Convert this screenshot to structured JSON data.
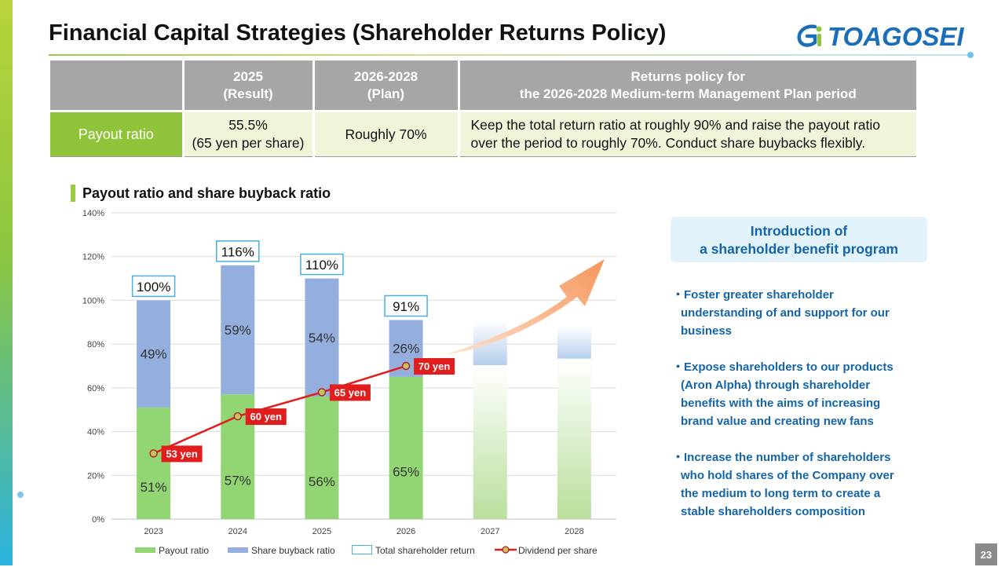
{
  "title": "Financial Capital Strategies (Shareholder Returns Policy)",
  "logo_text": "TOAGOSEI",
  "table": {
    "corner": "",
    "col1_line1": "2025",
    "col1_line2": "(Result)",
    "col2_line1": "2026-2028",
    "col2_line2": "(Plan)",
    "col3_line1": "Returns policy for",
    "col3_line2": "the 2026-2028 Medium-term Management Plan period",
    "row_label": "Payout ratio",
    "val1_line1": "55.5%",
    "val1_line2": "(65 yen per share)",
    "val2": "Roughly 70%",
    "policy_line1": "Keep the total return ratio at roughly 90% and raise the payout ratio",
    "policy_line2": "over the period to roughly 70%. Conduct share buybacks flexibly."
  },
  "chart_heading": "Payout ratio and share buyback ratio",
  "chart_data": {
    "type": "bar",
    "stacked": true,
    "categories": [
      "2023",
      "2024",
      "2025",
      "2026",
      "2027",
      "2028"
    ],
    "series": [
      {
        "name": "Payout ratio",
        "values": [
          51,
          57,
          56,
          65,
          70,
          73
        ],
        "labels": [
          "51%",
          "57%",
          "56%",
          "65%",
          "",
          ""
        ],
        "color": "#92d673"
      },
      {
        "name": "Share buyback ratio",
        "values": [
          49,
          59,
          54,
          26,
          21,
          15
        ],
        "labels": [
          "49%",
          "59%",
          "54%",
          "26%",
          "",
          ""
        ],
        "color": "#94aedd"
      }
    ],
    "totals": [
      100,
      116,
      110,
      91,
      null,
      null
    ],
    "total_labels": [
      "100%",
      "116%",
      "110%",
      "91%",
      "",
      ""
    ],
    "total_series_name": "Total shareholder return",
    "dividend": {
      "name": "Dividend per share",
      "values": [
        53,
        60,
        65,
        70
      ],
      "labels": [
        "53 yen",
        "60 yen",
        "65 yen",
        "70 yen"
      ],
      "plotted_at_percent": [
        30,
        47,
        58,
        70
      ],
      "color": "#e11e1e"
    },
    "ylim": [
      0,
      140
    ],
    "yticks": [
      0,
      20,
      40,
      60,
      80,
      100,
      120,
      140
    ],
    "ytick_labels": [
      "0%",
      "20%",
      "40%",
      "60%",
      "80%",
      "100%",
      "120%",
      "140%"
    ],
    "grid": true,
    "legend_position": "bottom",
    "projection_categories": [
      "2027",
      "2028"
    ],
    "trend_arrow": true
  },
  "legend": {
    "payout": "Payout ratio",
    "buyback": "Share buyback ratio",
    "total": "Total shareholder return",
    "dividend": "Dividend per share"
  },
  "benefit": {
    "title_line1": "Introduction of",
    "title_line2": "a shareholder benefit program",
    "bullets": [
      {
        "line1": "・Foster greater shareholder",
        "line2": "understanding of and support for our",
        "line3": "business",
        "line4": ""
      },
      {
        "line1": "・Expose shareholders to our products",
        "line2": "(Aron Alpha) through shareholder",
        "line3": "benefits with the aims of increasing",
        "line4": "brand value and creating new fans"
      },
      {
        "line1": "・Increase the number of shareholders",
        "line2": "who hold shares of the Company over",
        "line3": "the medium to long term to create a",
        "line4": "stable shareholders composition"
      }
    ]
  },
  "page_number": "23",
  "colors": {
    "accent_green": "#8fc33a",
    "accent_blue": "#1464a8",
    "header_gray": "#a6a6a6"
  }
}
